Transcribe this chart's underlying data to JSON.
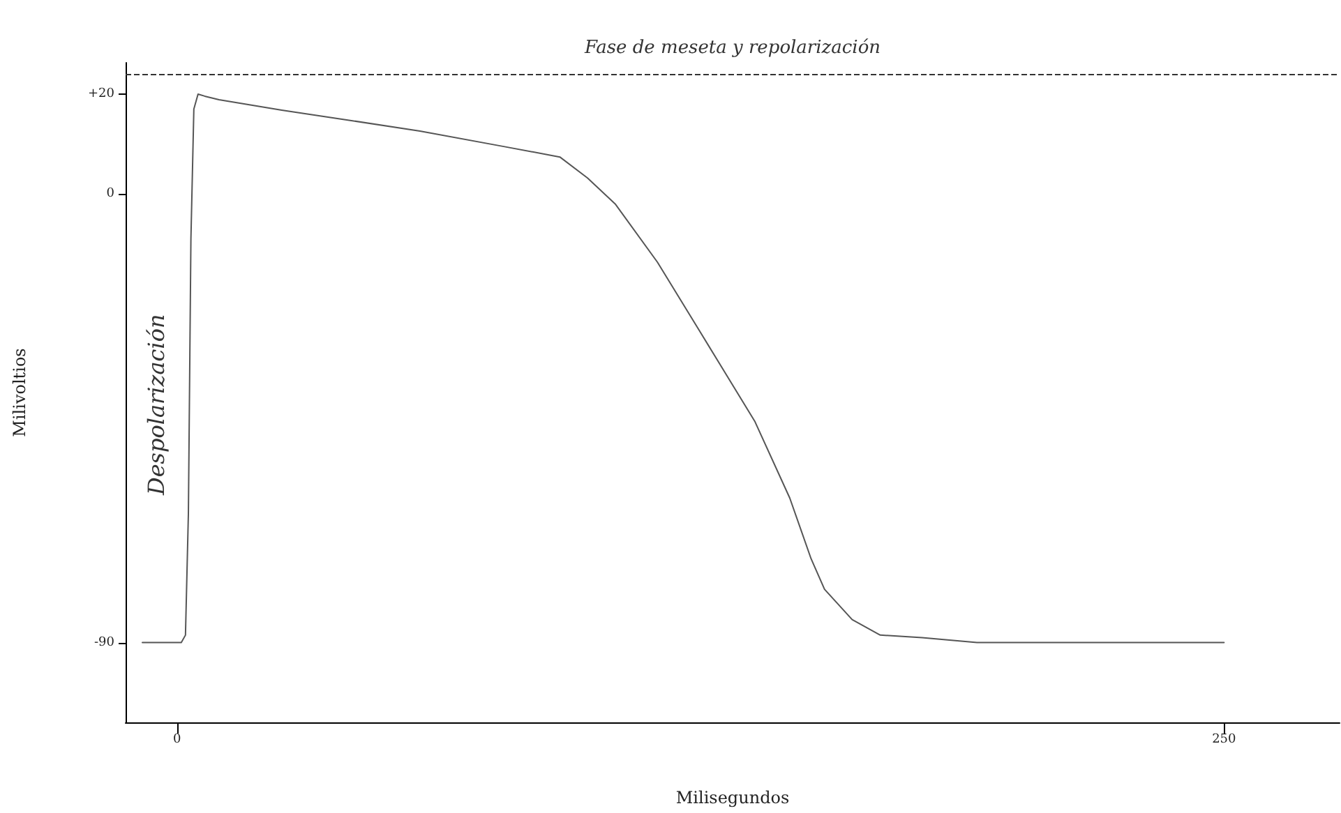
{
  "chart_data": {
    "type": "line",
    "xlabel": "Milisegundos",
    "ylabel": "Milivoltios",
    "color": "#555555",
    "x": [
      -8.3,
      1,
      2,
      2.7,
      3.3,
      4,
      5,
      6.6,
      10,
      25,
      41.6,
      58,
      78,
      91.4,
      98,
      104.7,
      114.7,
      124.7,
      138,
      146.3,
      151.4,
      154.6,
      161.2,
      167.9,
      177.9,
      191,
      250
    ],
    "values": [
      -90,
      -90,
      -88.5,
      -64,
      -9,
      17,
      20,
      19.6,
      18.9,
      16.8,
      14.7,
      12.6,
      9.5,
      7.4,
      3.2,
      -2.1,
      -13.7,
      -27.4,
      -45.7,
      -61,
      -73.2,
      -79.3,
      -85.4,
      -88.5,
      -89,
      -90,
      -90
    ],
    "xlim": [
      -12.3,
      277.6
    ],
    "ylim": [
      -106,
      26.3
    ],
    "xticks": [
      0,
      250
    ],
    "yticks": [
      {
        "value": 20,
        "label": "+20"
      },
      0,
      -90
    ],
    "ref_lines": [
      {
        "axis": "y",
        "value": 24,
        "label": "Fase de meseta y repolarización",
        "line_style": "dashed"
      }
    ],
    "annotations": [
      "Despolarización"
    ],
    "grid": false,
    "marker": "none",
    "line_style": "solid"
  }
}
